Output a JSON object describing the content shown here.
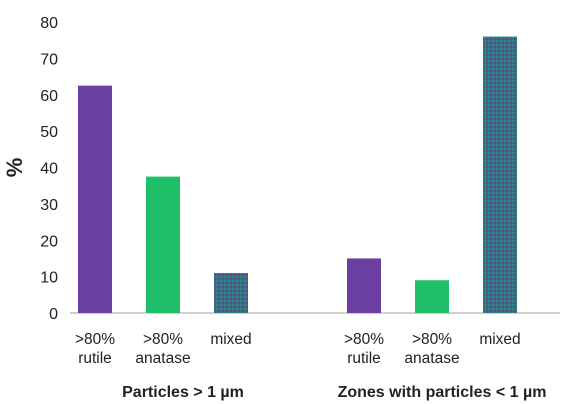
{
  "chart_data": {
    "type": "bar",
    "ylabel": "%",
    "ylim": [
      0,
      80
    ],
    "yticks": [
      0,
      10,
      20,
      30,
      40,
      50,
      60,
      70,
      80
    ],
    "grid": false,
    "legend": "none",
    "groups": [
      {
        "label": "Particles > 1 µm",
        "bars": [
          {
            "label_lines": [
              ">80%",
              "rutile"
            ],
            "value": 62.5,
            "color": "#6a3fa0",
            "pattern": "solid"
          },
          {
            "label_lines": [
              ">80%",
              "anatase"
            ],
            "value": 37.5,
            "color": "#1fbf6a",
            "pattern": "solid"
          },
          {
            "label_lines": [
              "mixed"
            ],
            "value": 11,
            "color": "#3d6f86",
            "pattern": "dotted"
          }
        ]
      },
      {
        "label": "Zones with particles < 1 µm",
        "bars": [
          {
            "label_lines": [
              ">80%",
              "rutile"
            ],
            "value": 15,
            "color": "#6a3fa0",
            "pattern": "solid"
          },
          {
            "label_lines": [
              ">80%",
              "anatase"
            ],
            "value": 9,
            "color": "#1fbf6a",
            "pattern": "solid"
          },
          {
            "label_lines": [
              "mixed"
            ],
            "value": 76,
            "color": "#3d6f86",
            "pattern": "dotted"
          }
        ]
      }
    ]
  }
}
